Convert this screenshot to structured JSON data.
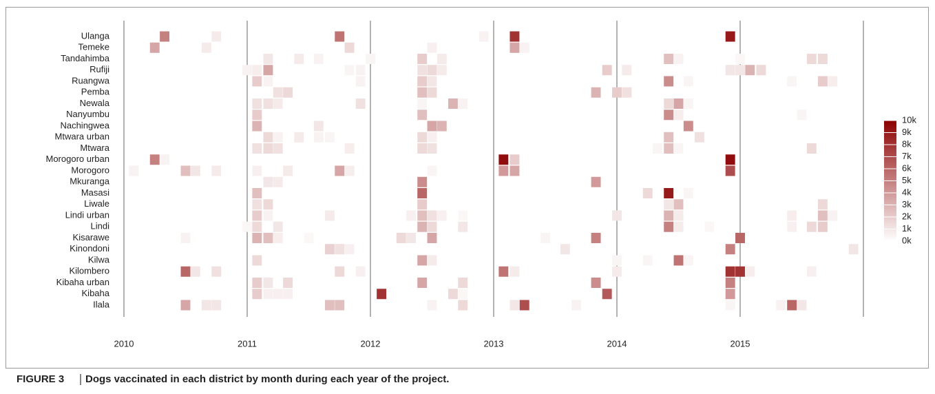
{
  "chart_data": {
    "type": "heatmap",
    "caption_label": "FIGURE 3",
    "caption": "Dogs vaccinated in each district by month during each year of the project.",
    "xlim": [
      2010,
      2016
    ],
    "xticks": [
      2010,
      2011,
      2012,
      2013,
      2014,
      2015
    ],
    "colorscale": [
      "#ffffff",
      "#8b0000"
    ],
    "clim": [
      0,
      10000
    ],
    "cticks": [
      {
        "value": 0,
        "label": "0k"
      },
      {
        "value": 1000,
        "label": "1k"
      },
      {
        "value": 2000,
        "label": "2k"
      },
      {
        "value": 3000,
        "label": "3k"
      },
      {
        "value": 4000,
        "label": "4k"
      },
      {
        "value": 5000,
        "label": "5k"
      },
      {
        "value": 6000,
        "label": "6k"
      },
      {
        "value": 7000,
        "label": "7k"
      },
      {
        "value": 8000,
        "label": "8k"
      },
      {
        "value": 9000,
        "label": "9k"
      },
      {
        "value": 10000,
        "label": "10k"
      }
    ],
    "series": [
      {
        "name": "Ulanga",
        "x": [
          2010.33,
          2010.75,
          2011.75,
          2012.92,
          2013.17,
          2014.92
        ],
        "values": [
          5000,
          800,
          5500,
          500,
          8000,
          9000
        ]
      },
      {
        "name": "Temeke",
        "x": [
          2010.25,
          2010.67,
          2011.83,
          2012.5,
          2013.17,
          2013.25
        ],
        "values": [
          3500,
          800,
          1500,
          600,
          3500,
          500
        ]
      },
      {
        "name": "Tandahimba",
        "x": [
          2011.17,
          2011.42,
          2011.58,
          2012.0,
          2012.42,
          2012.58,
          2014.42,
          2014.5,
          2015.0,
          2015.58,
          2015.67
        ],
        "values": [
          1000,
          800,
          500,
          400,
          2000,
          800,
          2500,
          500,
          300,
          1500,
          1500
        ]
      },
      {
        "name": "Rufiji",
        "x": [
          2011.0,
          2011.08,
          2011.17,
          2011.83,
          2011.92,
          2012.42,
          2012.5,
          2012.58,
          2013.92,
          2014.08,
          2014.92,
          2015.0,
          2015.08,
          2015.17
        ],
        "values": [
          500,
          700,
          3500,
          400,
          500,
          1200,
          1500,
          800,
          2000,
          800,
          1000,
          1000,
          3000,
          1500
        ]
      },
      {
        "name": "Ruangwa",
        "x": [
          2011.08,
          2011.17,
          2011.92,
          2012.42,
          2012.5,
          2014.42,
          2014.58,
          2015.42,
          2015.67,
          2015.75
        ],
        "values": [
          2000,
          500,
          500,
          2000,
          1000,
          4500,
          400,
          400,
          2000,
          700
        ]
      },
      {
        "name": "Pemba",
        "x": [
          2011.25,
          2011.33,
          2012.42,
          2012.5,
          2013.83,
          2014.0,
          2014.08
        ],
        "values": [
          1200,
          1500,
          2500,
          1500,
          3000,
          2000,
          1200
        ]
      },
      {
        "name": "Newala",
        "x": [
          2011.08,
          2011.17,
          2011.25,
          2011.92,
          2012.42,
          2012.67,
          2012.75,
          2014.42,
          2014.5,
          2014.58
        ],
        "values": [
          1200,
          1200,
          800,
          1200,
          400,
          3000,
          500,
          1500,
          3500,
          400
        ]
      },
      {
        "name": "Nanyumbu",
        "x": [
          2011.08,
          2012.42,
          2014.42,
          2014.5,
          2015.5
        ],
        "values": [
          2000,
          2500,
          4500,
          700,
          400
        ]
      },
      {
        "name": "Nachingwea",
        "x": [
          2011.08,
          2011.58,
          2012.5,
          2012.58,
          2014.58
        ],
        "values": [
          3000,
          1000,
          3500,
          3000,
          4500
        ]
      },
      {
        "name": "Mtwara urban",
        "x": [
          2011.17,
          2011.25,
          2011.42,
          2011.58,
          2011.67,
          2012.42,
          2012.5,
          2014.42,
          2014.67
        ],
        "values": [
          1500,
          500,
          800,
          500,
          400,
          1500,
          600,
          2500,
          1200
        ]
      },
      {
        "name": "Mtwara",
        "x": [
          2011.08,
          2011.17,
          2011.25,
          2011.83,
          2012.42,
          2012.5,
          2014.33,
          2014.42,
          2014.5,
          2015.58
        ],
        "values": [
          1200,
          1500,
          1200,
          700,
          1500,
          1200,
          400,
          2500,
          400,
          1500
        ]
      },
      {
        "name": "Morogoro urban",
        "x": [
          2010.25,
          2010.33,
          2013.08,
          2013.17,
          2014.92
        ],
        "values": [
          5000,
          500,
          9500,
          2000,
          9500
        ]
      },
      {
        "name": "Morogoro",
        "x": [
          2010.08,
          2010.5,
          2010.58,
          2010.75,
          2011.08,
          2011.33,
          2011.75,
          2011.83,
          2012.5,
          2013.08,
          2013.17,
          2014.92
        ],
        "values": [
          500,
          2500,
          1000,
          800,
          600,
          800,
          3500,
          700,
          400,
          4000,
          3500,
          7000
        ]
      },
      {
        "name": "Mkuranga",
        "x": [
          2011.17,
          2011.25,
          2012.42,
          2013.83
        ],
        "values": [
          1000,
          800,
          4500,
          4000
        ]
      },
      {
        "name": "Masasi",
        "x": [
          2011.08,
          2012.42,
          2014.25,
          2014.42,
          2014.58
        ],
        "values": [
          2500,
          6000,
          1500,
          9000,
          400
        ]
      },
      {
        "name": "Liwale",
        "x": [
          2011.08,
          2011.17,
          2012.42,
          2014.42,
          2014.5,
          2015.67
        ],
        "values": [
          1200,
          1500,
          2000,
          1000,
          2500,
          1500
        ]
      },
      {
        "name": "Lindi urban",
        "x": [
          2011.08,
          2011.17,
          2011.67,
          2012.33,
          2012.42,
          2012.5,
          2012.58,
          2012.75,
          2014.0,
          2014.42,
          2014.5,
          2015.42,
          2015.67,
          2015.75
        ],
        "values": [
          2000,
          500,
          800,
          600,
          2500,
          1200,
          600,
          300,
          1000,
          3000,
          800,
          700,
          2500,
          500
        ]
      },
      {
        "name": "Lindi",
        "x": [
          2011.0,
          2011.08,
          2011.25,
          2012.42,
          2012.5,
          2012.75,
          2014.42,
          2014.5,
          2014.75,
          2015.42,
          2015.58,
          2015.67
        ],
        "values": [
          300,
          1500,
          1000,
          3000,
          1500,
          1000,
          5000,
          800,
          300,
          600,
          1500,
          2000
        ]
      },
      {
        "name": "Kisarawe",
        "x": [
          2010.5,
          2011.08,
          2011.17,
          2011.25,
          2011.5,
          2012.25,
          2012.33,
          2012.5,
          2013.42,
          2013.83,
          2015.0
        ],
        "values": [
          500,
          3000,
          2500,
          700,
          300,
          1500,
          1000,
          3500,
          400,
          5000,
          6000
        ]
      },
      {
        "name": "Kinondoni",
        "x": [
          2011.67,
          2011.75,
          2011.83,
          2013.58,
          2014.92,
          2015.92
        ],
        "values": [
          1800,
          1200,
          600,
          1000,
          5000,
          1000
        ]
      },
      {
        "name": "Kilwa",
        "x": [
          2011.08,
          2012.42,
          2012.5,
          2014.0,
          2014.25,
          2014.5,
          2014.58
        ],
        "values": [
          1500,
          3500,
          800,
          400,
          400,
          5500,
          400
        ]
      },
      {
        "name": "Kilombero",
        "x": [
          2010.5,
          2010.58,
          2010.75,
          2011.75,
          2011.92,
          2013.08,
          2013.17,
          2014.0,
          2014.92,
          2015.0,
          2015.08,
          2015.58
        ],
        "values": [
          6000,
          1000,
          1200,
          1500,
          600,
          5500,
          800,
          800,
          8000,
          8000,
          700,
          600
        ]
      },
      {
        "name": "Kibaha urban",
        "x": [
          2011.08,
          2011.17,
          2011.33,
          2012.42,
          2012.75,
          2013.83,
          2014.92
        ],
        "values": [
          2000,
          1000,
          1500,
          3500,
          1500,
          4500,
          5000
        ]
      },
      {
        "name": "Kibaha",
        "x": [
          2011.08,
          2011.17,
          2011.25,
          2011.33,
          2012.09,
          2012.67,
          2012.75,
          2013.92,
          2014.92
        ],
        "values": [
          2000,
          600,
          600,
          600,
          8000,
          1500,
          300,
          6500,
          4000
        ]
      },
      {
        "name": "Ilala",
        "x": [
          2010.5,
          2010.67,
          2010.75,
          2011.67,
          2011.75,
          2012.5,
          2012.75,
          2013.17,
          2013.25,
          2013.67,
          2014.92,
          2015.33,
          2015.42,
          2015.5
        ],
        "values": [
          3500,
          1000,
          1000,
          2500,
          2500,
          500,
          1500,
          1000,
          7000,
          500,
          400,
          500,
          6000,
          1000
        ]
      }
    ]
  }
}
